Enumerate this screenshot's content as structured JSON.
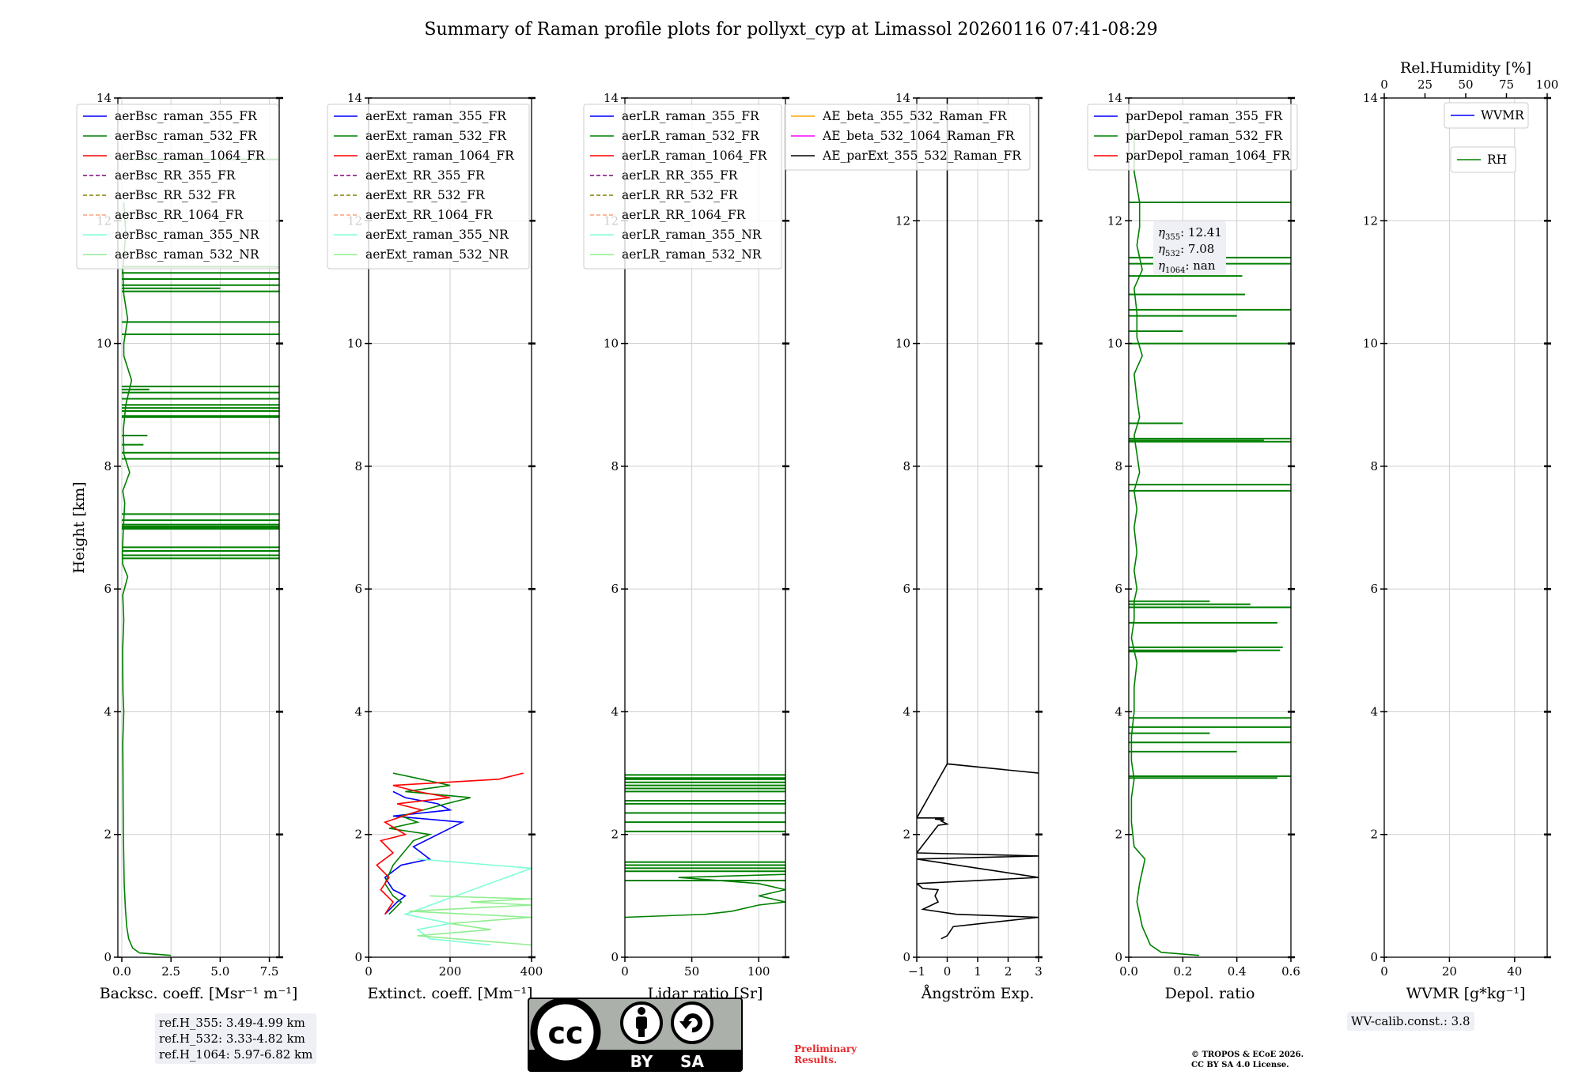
{
  "figure_title": "Summary of Raman profile plots for pollyxt_cyp at Limassol 20260116 07:41-08:29",
  "colors": {
    "blue": "#0000ff",
    "green": "#008000",
    "red": "#ff0000",
    "purple": "#800080",
    "olive": "#808000",
    "salmon": "#ffa07a",
    "cyan": "#7fffd4",
    "lightgreen": "#90ee90",
    "orange": "#ffa500",
    "magenta": "#ff00ff",
    "black": "#000000",
    "prelim_red": "#e8292c"
  },
  "chart_data": [
    {
      "type": "line",
      "name": "backscatter",
      "xlabel": "Backsc. coeff. [Msr⁻¹ m⁻¹]",
      "ylabel": "Height [km]",
      "xlim": [
        -0.2,
        8.0
      ],
      "ylim": [
        0,
        14
      ],
      "xticks": [
        "0.0",
        "2.5",
        "5.0",
        "7.5"
      ],
      "xtick_values": [
        0,
        2.5,
        5.0,
        7.5
      ],
      "yticks": [
        "0",
        "2",
        "4",
        "6",
        "8",
        "10",
        "12",
        "14"
      ],
      "legend": [
        {
          "label": "aerBsc_raman_355_FR",
          "color": "blue",
          "dash": false
        },
        {
          "label": "aerBsc_raman_532_FR",
          "color": "green",
          "dash": false
        },
        {
          "label": "aerBsc_raman_1064_FR",
          "color": "red",
          "dash": false
        },
        {
          "label": "aerBsc_RR_355_FR",
          "color": "purple",
          "dash": true
        },
        {
          "label": "aerBsc_RR_532_FR",
          "color": "olive",
          "dash": true
        },
        {
          "label": "aerBsc_RR_1064_FR",
          "color": "salmon",
          "dash": true
        },
        {
          "label": "aerBsc_raman_355_NR",
          "color": "cyan",
          "dash": false
        },
        {
          "label": "aerBsc_raman_532_NR",
          "color": "lightgreen",
          "dash": false
        }
      ],
      "series": [
        {
          "name": "aerBsc_raman_532_FR",
          "color": "green",
          "x": [
            2.5,
            0.9,
            0.55,
            0.35,
            0.25,
            0.18,
            0.12,
            0.1,
            0.08,
            0.07,
            0.06,
            0.05,
            0.1,
            0.06,
            0.05,
            0.04,
            0.1,
            0.05,
            0.3,
            0.05,
            0.03,
            0.08,
            0.15,
            0.05,
            0.4,
            0.1,
            0.08,
            0.2,
            0.5,
            0.1,
            0.1,
            0.3,
            0.1,
            0.05,
            0.2,
            0.1
          ],
          "y": [
            0.03,
            0.07,
            0.15,
            0.3,
            0.5,
            0.8,
            1.2,
            1.6,
            2.0,
            2.5,
            3.0,
            3.5,
            4.0,
            4.3,
            4.6,
            5.0,
            5.5,
            5.9,
            6.2,
            6.4,
            6.6,
            7.0,
            7.4,
            7.6,
            7.9,
            8.2,
            8.6,
            9.0,
            9.4,
            9.8,
            10.0,
            10.4,
            10.8,
            11.2,
            11.8,
            12.3
          ]
        },
        {
          "name": "aerBsc_raman_532_FR spikes",
          "color": "green",
          "kind": "hbar",
          "x": [
            8.0,
            8.0,
            8.0,
            8.0,
            8.0,
            8.0,
            8.0,
            8.0,
            8.0,
            8.0,
            8.0,
            8.0,
            8.0,
            8.0,
            8.0,
            8.0,
            8.0,
            8.0,
            1.1,
            1.3,
            8.0,
            1.4,
            8.0,
            8.0,
            8.0,
            8.0,
            8.0,
            5.0,
            8.0,
            8.0,
            8.0,
            8.0
          ],
          "y": [
            6.5,
            6.55,
            6.62,
            6.68,
            6.98,
            7.0,
            7.02,
            7.05,
            7.12,
            7.22,
            8.12,
            8.22,
            8.8,
            8.82,
            8.9,
            8.95,
            9.0,
            9.1,
            8.35,
            8.5,
            9.2,
            9.25,
            9.3,
            10.15,
            10.35,
            10.85,
            10.95,
            10.9,
            11.05,
            11.15,
            11.25,
            13.0
          ]
        }
      ]
    },
    {
      "type": "line",
      "name": "extinction",
      "xlabel": "Extinct. coeff. [Mm⁻¹]",
      "xlim": [
        0,
        400
      ],
      "ylim": [
        0,
        14
      ],
      "xticks": [
        "0",
        "200",
        "400"
      ],
      "xtick_values": [
        0,
        200,
        400
      ],
      "yticks": [
        "0",
        "2",
        "4",
        "6",
        "8",
        "10",
        "12",
        "14"
      ],
      "legend": [
        {
          "label": "aerExt_raman_355_FR",
          "color": "blue",
          "dash": false
        },
        {
          "label": "aerExt_raman_532_FR",
          "color": "green",
          "dash": false
        },
        {
          "label": "aerExt_raman_1064_FR",
          "color": "red",
          "dash": false
        },
        {
          "label": "aerExt_RR_355_FR",
          "color": "purple",
          "dash": true
        },
        {
          "label": "aerExt_RR_532_FR",
          "color": "olive",
          "dash": true
        },
        {
          "label": "aerExt_RR_1064_FR",
          "color": "salmon",
          "dash": true
        },
        {
          "label": "aerExt_raman_355_NR",
          "color": "cyan",
          "dash": false
        },
        {
          "label": "aerExt_raman_532_NR",
          "color": "lightgreen",
          "dash": false
        }
      ],
      "series": [
        {
          "name": "aerExt_raman_355_FR",
          "color": "blue",
          "x": [
            40,
            70,
            90,
            60,
            40,
            80,
            150,
            110,
            230,
            60,
            200,
            170,
            90,
            60
          ],
          "y": [
            0.7,
            0.9,
            1.0,
            1.1,
            1.3,
            1.5,
            1.6,
            1.8,
            2.2,
            2.3,
            2.4,
            2.5,
            2.6,
            2.7
          ]
        },
        {
          "name": "aerExt_raman_532_FR",
          "color": "green",
          "x": [
            50,
            80,
            60,
            40,
            60,
            110,
            150,
            50,
            120,
            80,
            190,
            250,
            90,
            200,
            130,
            60
          ],
          "y": [
            0.7,
            0.9,
            1.0,
            1.2,
            1.5,
            1.9,
            2.0,
            2.1,
            2.2,
            2.3,
            2.5,
            2.6,
            2.7,
            2.8,
            2.9,
            3.0
          ]
        },
        {
          "name": "aerExt_raman_1064_FR",
          "color": "red",
          "x": [
            40,
            60,
            30,
            50,
            20,
            60,
            30,
            90,
            40,
            130,
            70,
            200,
            120,
            60,
            320,
            380
          ],
          "y": [
            0.7,
            0.9,
            1.1,
            1.3,
            1.5,
            1.7,
            1.9,
            2.0,
            2.2,
            2.4,
            2.5,
            2.6,
            2.7,
            2.8,
            2.9,
            3.0
          ]
        },
        {
          "name": "aerExt_raman_355_NR",
          "color": "cyan",
          "x": [
            300,
            150,
            120,
            200,
            90,
            400,
            120
          ],
          "y": [
            0.2,
            0.3,
            0.45,
            0.55,
            0.7,
            1.45,
            1.6
          ]
        },
        {
          "name": "aerExt_raman_532_NR",
          "color": "lightgreen",
          "x": [
            400,
            120,
            300,
            200,
            400,
            100,
            400,
            250,
            400,
            150
          ],
          "y": [
            0.2,
            0.35,
            0.45,
            0.55,
            0.65,
            0.75,
            0.85,
            0.9,
            0.95,
            1.0
          ]
        }
      ]
    },
    {
      "type": "line",
      "name": "lidar_ratio",
      "xlabel": "Lidar ratio [Sr]",
      "xlim": [
        0,
        120
      ],
      "ylim": [
        0,
        14
      ],
      "xticks": [
        "0",
        "50",
        "100"
      ],
      "xtick_values": [
        0,
        50,
        100
      ],
      "yticks": [
        "0",
        "2",
        "4",
        "6",
        "8",
        "10",
        "12",
        "14"
      ],
      "legend": [
        {
          "label": "aerLR_raman_355_FR",
          "color": "blue",
          "dash": false
        },
        {
          "label": "aerLR_raman_532_FR",
          "color": "green",
          "dash": false
        },
        {
          "label": "aerLR_raman_1064_FR",
          "color": "red",
          "dash": false
        },
        {
          "label": "aerLR_RR_355_FR",
          "color": "purple",
          "dash": true
        },
        {
          "label": "aerLR_RR_532_FR",
          "color": "olive",
          "dash": true
        },
        {
          "label": "aerLR_RR_1064_FR",
          "color": "salmon",
          "dash": true
        },
        {
          "label": "aerLR_raman_355_NR",
          "color": "cyan",
          "dash": false
        },
        {
          "label": "aerLR_raman_532_NR",
          "color": "lightgreen",
          "dash": false
        }
      ],
      "series": [
        {
          "name": "aerLR_raman_532_FR",
          "color": "green",
          "x": [
            0,
            60,
            80,
            100,
            120,
            100,
            120,
            100,
            40,
            120
          ],
          "y": [
            0.65,
            0.7,
            0.75,
            0.85,
            0.9,
            1.0,
            1.1,
            1.2,
            1.3,
            1.35
          ]
        },
        {
          "name": "aerLR_raman_532_FR spikes",
          "color": "green",
          "kind": "hbar",
          "x": [
            120,
            120,
            120,
            120,
            120,
            120,
            120,
            120,
            120,
            120,
            120,
            120,
            120,
            120,
            120,
            120,
            120
          ],
          "y": [
            1.25,
            1.4,
            1.45,
            1.5,
            1.55,
            2.05,
            2.2,
            2.35,
            2.5,
            2.55,
            2.7,
            2.75,
            2.8,
            2.85,
            2.9,
            2.92,
            2.97
          ]
        }
      ]
    },
    {
      "type": "line",
      "name": "angstrom",
      "xlabel": "Ångström Exp.",
      "xlim": [
        -1,
        3
      ],
      "ylim": [
        0,
        14
      ],
      "xticks": [
        "−1",
        "0",
        "1",
        "2",
        "3"
      ],
      "xtick_values": [
        -1,
        0,
        1,
        2,
        3
      ],
      "yticks": [
        "0",
        "2",
        "4",
        "6",
        "8",
        "10",
        "12",
        "14"
      ],
      "legend": [
        {
          "label": "AE_beta_355_532_Raman_FR",
          "color": "orange",
          "dash": false
        },
        {
          "label": "AE_beta_532_1064_Raman_FR",
          "color": "magenta",
          "dash": false
        },
        {
          "label": "AE_parExt_355_532_Raman_FR",
          "color": "black",
          "dash": false
        }
      ],
      "series": [
        {
          "name": "AE_parExt_355_532_Raman_FR",
          "color": "black",
          "x": [
            -0.2,
            0.0,
            0.2,
            3.0,
            0.3,
            -0.8,
            -0.3,
            -0.4,
            -0.3,
            -0.8,
            -1.0,
            3.0,
            -1.0,
            3.0,
            -1.0,
            -0.3,
            0.0,
            -0.2,
            -0.1,
            -0.4,
            -0.1,
            -1.0,
            0.0,
            3.0,
            0.0,
            0.0
          ],
          "y": [
            0.3,
            0.35,
            0.5,
            0.65,
            0.7,
            0.78,
            0.9,
            1.0,
            1.1,
            1.12,
            1.2,
            1.3,
            1.6,
            1.65,
            1.7,
            2.15,
            2.17,
            2.22,
            2.24,
            2.25,
            2.27,
            2.27,
            3.15,
            3.0,
            3.15,
            14.0
          ]
        }
      ]
    },
    {
      "type": "line",
      "name": "depolarization",
      "xlabel": "Depol. ratio",
      "xlim": [
        0,
        0.6
      ],
      "ylim": [
        0,
        14
      ],
      "xticks": [
        "0.0",
        "0.2",
        "0.4",
        "0.6"
      ],
      "xtick_values": [
        0,
        0.2,
        0.4,
        0.6
      ],
      "yticks": [
        "0",
        "2",
        "4",
        "6",
        "8",
        "10",
        "12",
        "14"
      ],
      "legend": [
        {
          "label": "parDepol_raman_355_FR",
          "color": "blue",
          "dash": false
        },
        {
          "label": "parDepol_raman_532_FR",
          "color": "green",
          "dash": false
        },
        {
          "label": "parDepol_raman_1064_FR",
          "color": "red",
          "dash": false
        }
      ],
      "annotation": {
        "eta355": "12.41",
        "eta532": "7.08",
        "eta1064": "nan"
      },
      "series": [
        {
          "name": "parDepol_raman_532_FR",
          "color": "green",
          "x": [
            0.26,
            0.12,
            0.08,
            0.05,
            0.03,
            0.04,
            0.06,
            0.02,
            0.01,
            0.01,
            0.02,
            0.01,
            0.01,
            0.02,
            0.02,
            0.03,
            0.01,
            0.02,
            0.02,
            0.03,
            0.02,
            0.03,
            0.02,
            0.03,
            0.02,
            0.04,
            0.03,
            0.02,
            0.04,
            0.03,
            0.02,
            0.05,
            0.03,
            0.03,
            0.02,
            0.05,
            0.03,
            0.04,
            0.04,
            0.02,
            0.02
          ],
          "y": [
            0.03,
            0.08,
            0.2,
            0.5,
            0.9,
            1.2,
            1.6,
            1.8,
            2.2,
            2.6,
            2.9,
            3.2,
            3.6,
            4.0,
            4.4,
            4.8,
            5.2,
            5.5,
            5.8,
            6.0,
            6.3,
            6.6,
            7.0,
            7.3,
            7.6,
            7.9,
            8.2,
            8.5,
            8.8,
            9.1,
            9.5,
            9.8,
            10.1,
            10.5,
            10.9,
            11.2,
            11.6,
            11.9,
            12.3,
            12.8,
            13.5
          ]
        },
        {
          "name": "parDepol_raman_532_FR spikes",
          "color": "green",
          "kind": "hbar",
          "x": [
            0.55,
            0.6,
            0.4,
            0.6,
            0.3,
            0.6,
            0.6,
            0.4,
            0.56,
            0.57,
            0.55,
            0.6,
            0.3,
            0.45,
            0.6,
            0.6,
            0.6,
            0.2,
            0.6,
            0.5,
            0.6,
            0.2,
            0.4,
            0.6,
            0.43,
            0.3,
            0.42,
            0.6,
            0.6,
            0.6
          ],
          "y": [
            2.92,
            2.95,
            3.35,
            3.5,
            3.65,
            3.75,
            3.9,
            4.98,
            5.0,
            5.05,
            5.45,
            5.7,
            5.8,
            5.75,
            7.6,
            7.7,
            8.45,
            8.7,
            8.4,
            8.42,
            10.0,
            10.2,
            10.45,
            10.55,
            10.8,
            10.8,
            11.1,
            11.3,
            11.4,
            12.3
          ]
        }
      ]
    },
    {
      "type": "line",
      "name": "wvmr_rh",
      "xlabel": "WVMR [g*kg⁻¹]",
      "xlim": [
        0,
        50
      ],
      "ylim": [
        0,
        14
      ],
      "xticks": [
        "0",
        "20",
        "40"
      ],
      "xtick_values": [
        0,
        20,
        40
      ],
      "yticks": [
        "0",
        "2",
        "4",
        "6",
        "8",
        "10",
        "12",
        "14"
      ],
      "top_xlabel": "Rel.Humidity [%]",
      "top_xticks": [
        "0",
        "25",
        "50",
        "75",
        "100"
      ],
      "top_xtick_values": [
        0,
        25,
        50,
        75,
        100
      ],
      "legend_wvmr": {
        "label": "WVMR",
        "color": "blue"
      },
      "legend_rh": {
        "label": "RH",
        "color": "green"
      },
      "series": []
    }
  ],
  "ref_heights": {
    "h355": "ref.H_355: 3.49-4.99 km",
    "h532": "ref.H_532: 3.33-4.82 km",
    "h1064": "ref.H_1064: 5.97-6.82 km"
  },
  "wv_calib": "WV-calib.const.: 3.8",
  "license_badge": {
    "by": "BY",
    "sa": "SA",
    "cc": "cc"
  },
  "preliminary": {
    "line1": "Preliminary",
    "line2": "Results."
  },
  "copyright": {
    "line1": "© TROPOS & ECoE 2026.",
    "line2": "CC BY SA 4.0 License."
  }
}
